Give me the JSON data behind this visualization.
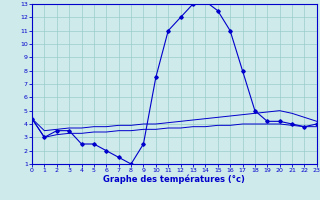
{
  "xlabel": "Graphe des températures (°c)",
  "ylim": [
    1,
    13
  ],
  "xlim": [
    0,
    23
  ],
  "yticks": [
    1,
    2,
    3,
    4,
    5,
    6,
    7,
    8,
    9,
    10,
    11,
    12,
    13
  ],
  "xticks": [
    0,
    1,
    2,
    3,
    4,
    5,
    6,
    7,
    8,
    9,
    10,
    11,
    12,
    13,
    14,
    15,
    16,
    17,
    18,
    19,
    20,
    21,
    22,
    23
  ],
  "bg_color": "#ceeaea",
  "line_color": "#0000cc",
  "grid_color": "#99cccc",
  "main_curve_x": [
    0,
    1,
    2,
    3,
    4,
    5,
    6,
    7,
    8,
    9,
    10,
    11,
    12,
    13,
    14,
    15,
    16,
    17,
    18,
    19,
    20,
    21,
    22,
    23
  ],
  "main_curve_y": [
    4.4,
    3.0,
    3.5,
    3.5,
    2.5,
    2.5,
    2.0,
    1.5,
    1.0,
    2.5,
    7.5,
    11.0,
    12.0,
    13.0,
    13.2,
    12.5,
    11.0,
    8.0,
    5.0,
    4.2,
    4.2,
    4.0,
    3.8,
    4.0
  ],
  "upper_line_x": [
    0,
    1,
    2,
    3,
    4,
    5,
    6,
    7,
    8,
    9,
    10,
    11,
    12,
    13,
    14,
    15,
    16,
    17,
    18,
    19,
    20,
    21,
    22,
    23
  ],
  "upper_line_y": [
    4.4,
    3.5,
    3.6,
    3.7,
    3.7,
    3.8,
    3.8,
    3.9,
    3.9,
    4.0,
    4.0,
    4.1,
    4.2,
    4.3,
    4.4,
    4.5,
    4.6,
    4.7,
    4.8,
    4.9,
    5.0,
    4.8,
    4.5,
    4.2
  ],
  "lower_line_x": [
    0,
    1,
    2,
    3,
    4,
    5,
    6,
    7,
    8,
    9,
    10,
    11,
    12,
    13,
    14,
    15,
    16,
    17,
    18,
    19,
    20,
    21,
    22,
    23
  ],
  "lower_line_y": [
    4.4,
    3.0,
    3.2,
    3.3,
    3.3,
    3.4,
    3.4,
    3.5,
    3.5,
    3.6,
    3.6,
    3.7,
    3.7,
    3.8,
    3.8,
    3.9,
    3.9,
    4.0,
    4.0,
    4.0,
    4.0,
    3.9,
    3.8,
    3.8
  ]
}
